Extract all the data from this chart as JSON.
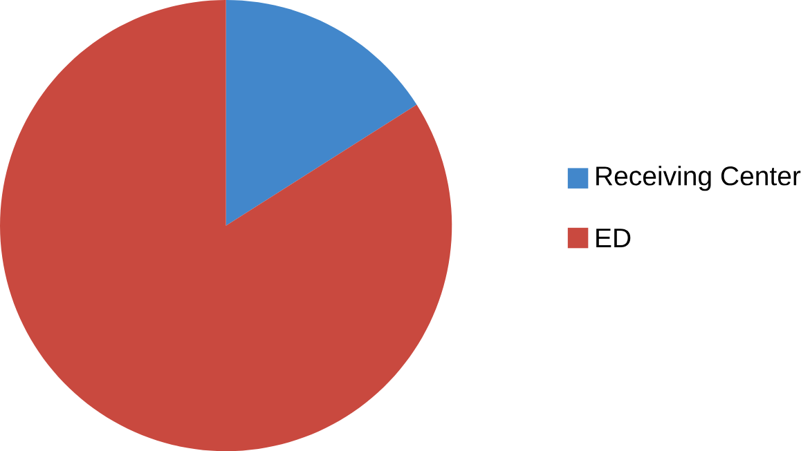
{
  "chart_data": {
    "type": "pie",
    "categories": [
      "Receiving Center",
      "ED"
    ],
    "values": [
      16,
      84
    ],
    "colors": [
      "#4287cb",
      "#c9493f"
    ],
    "legend": "right"
  }
}
